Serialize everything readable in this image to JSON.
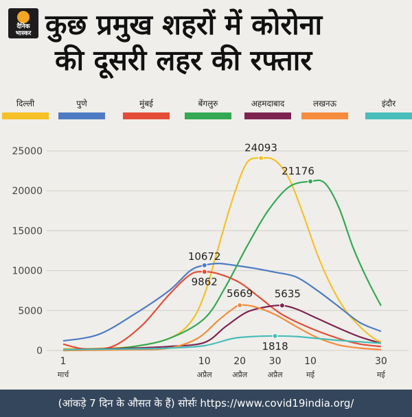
{
  "brand": {
    "logo_line1": "दैनिक",
    "logo_line2": "भास्कर"
  },
  "title_line1": "कुछ प्रमुख शहरों में कोरोना",
  "title_line2": "की दूसरी लहर की रफ्तार",
  "footer": "(आंकड़े 7 दिन के औसत के हैं) सोर्सः https://www.covid19india.org/",
  "chart_data": {
    "type": "line",
    "title": "कुछ प्रमुख शहरों में कोरोना की दूसरी लहर की रफ्तार",
    "xlabel": "",
    "ylabel": "",
    "ylim": [
      0,
      25000
    ],
    "xlim": [
      0,
      91
    ],
    "yticks": [
      0,
      5000,
      10000,
      15000,
      20000,
      25000
    ],
    "xticks": [
      {
        "x": 0,
        "day": "1",
        "month": "मार्च"
      },
      {
        "x": 40,
        "day": "10",
        "month": "अप्रैल"
      },
      {
        "x": 50,
        "day": "20",
        "month": "अप्रैल"
      },
      {
        "x": 60,
        "day": "30",
        "month": "अप्रैल"
      },
      {
        "x": 70,
        "day": "10",
        "month": "मई"
      },
      {
        "x": 90,
        "day": "30",
        "month": "मई"
      }
    ],
    "x_unit_note": "x = days since 1 March",
    "grid": true,
    "legend_position": "top",
    "series": [
      {
        "name": "दिल्ली",
        "color": "#f6c029",
        "points": [
          [
            0,
            200
          ],
          [
            10,
            250
          ],
          [
            20,
            500
          ],
          [
            30,
            1500
          ],
          [
            36,
            3500
          ],
          [
            40,
            7000
          ],
          [
            44,
            13000
          ],
          [
            48,
            19000
          ],
          [
            52,
            23500
          ],
          [
            56,
            24093
          ],
          [
            60,
            23800
          ],
          [
            64,
            21500
          ],
          [
            68,
            17000
          ],
          [
            72,
            12000
          ],
          [
            76,
            8000
          ],
          [
            80,
            5000
          ],
          [
            84,
            3000
          ],
          [
            88,
            1500
          ],
          [
            90,
            1100
          ]
        ],
        "annotation": {
          "x": 56,
          "y": 24093,
          "label": "24093"
        }
      },
      {
        "name": "पुणे",
        "color": "#4d7bc3",
        "points": [
          [
            0,
            1200
          ],
          [
            10,
            2000
          ],
          [
            20,
            4500
          ],
          [
            30,
            7500
          ],
          [
            36,
            10000
          ],
          [
            40,
            10672
          ],
          [
            44,
            10900
          ],
          [
            48,
            10700
          ],
          [
            54,
            10300
          ],
          [
            60,
            9800
          ],
          [
            66,
            9200
          ],
          [
            72,
            7500
          ],
          [
            78,
            5500
          ],
          [
            84,
            3500
          ],
          [
            90,
            2400
          ]
        ],
        "annotation": {
          "x": 40,
          "y": 10672,
          "label": "10672"
        }
      },
      {
        "name": "मुंबई",
        "color": "#e34c37",
        "points": [
          [
            0,
            800
          ],
          [
            6,
            200
          ],
          [
            14,
            500
          ],
          [
            22,
            3000
          ],
          [
            30,
            7000
          ],
          [
            36,
            9500
          ],
          [
            40,
            9862
          ],
          [
            44,
            9600
          ],
          [
            50,
            8500
          ],
          [
            56,
            6500
          ],
          [
            62,
            4500
          ],
          [
            70,
            2800
          ],
          [
            78,
            1500
          ],
          [
            84,
            800
          ],
          [
            90,
            500
          ]
        ],
        "annotation": {
          "x": 40,
          "y": 9862,
          "label": "9862"
        }
      },
      {
        "name": "बेंगलुरु",
        "color": "#34a853",
        "points": [
          [
            0,
            0
          ],
          [
            10,
            100
          ],
          [
            20,
            500
          ],
          [
            30,
            1500
          ],
          [
            40,
            4000
          ],
          [
            46,
            8000
          ],
          [
            52,
            13000
          ],
          [
            58,
            17500
          ],
          [
            64,
            20500
          ],
          [
            70,
            21176
          ],
          [
            74,
            21000
          ],
          [
            78,
            18000
          ],
          [
            82,
            13000
          ],
          [
            86,
            9000
          ],
          [
            90,
            5600
          ]
        ],
        "annotation": {
          "x": 70,
          "y": 21176,
          "label": "21176"
        }
      },
      {
        "name": "अहमदाबाद",
        "color": "#7e2450",
        "points": [
          [
            0,
            100
          ],
          [
            10,
            200
          ],
          [
            20,
            300
          ],
          [
            30,
            500
          ],
          [
            40,
            1000
          ],
          [
            46,
            3000
          ],
          [
            52,
            4800
          ],
          [
            58,
            5500
          ],
          [
            62,
            5635
          ],
          [
            66,
            5200
          ],
          [
            72,
            4000
          ],
          [
            78,
            2800
          ],
          [
            84,
            1700
          ],
          [
            90,
            900
          ]
        ],
        "annotation": {
          "x": 62,
          "y": 5635,
          "label": "5635"
        }
      },
      {
        "name": "लखनऊ",
        "color": "#f58b3c",
        "points": [
          [
            0,
            0
          ],
          [
            20,
            100
          ],
          [
            30,
            300
          ],
          [
            38,
            1500
          ],
          [
            44,
            3800
          ],
          [
            48,
            5200
          ],
          [
            50,
            5669
          ],
          [
            54,
            5500
          ],
          [
            60,
            4500
          ],
          [
            66,
            3000
          ],
          [
            72,
            1600
          ],
          [
            78,
            700
          ],
          [
            84,
            300
          ],
          [
            90,
            100
          ]
        ],
        "annotation": {
          "x": 50,
          "y": 5669,
          "label": "5669"
        }
      },
      {
        "name": "इंदौर",
        "color": "#49bdb9",
        "points": [
          [
            0,
            100
          ],
          [
            20,
            200
          ],
          [
            30,
            300
          ],
          [
            40,
            600
          ],
          [
            48,
            1500
          ],
          [
            54,
            1750
          ],
          [
            60,
            1818
          ],
          [
            66,
            1750
          ],
          [
            72,
            1500
          ],
          [
            80,
            1200
          ],
          [
            90,
            900
          ]
        ],
        "annotation": {
          "x": 60,
          "y": 1818,
          "label": "1818"
        }
      }
    ]
  }
}
